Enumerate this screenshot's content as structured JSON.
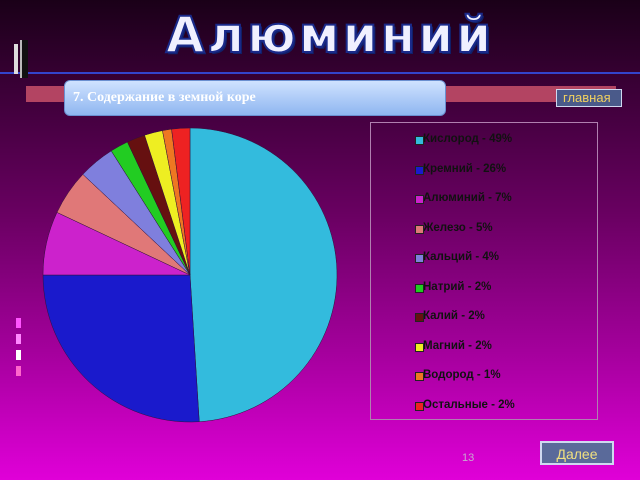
{
  "slide": {
    "title": "Алюминий",
    "subtitle": "7. Содержание в земной коре",
    "home_label": "главная",
    "next_label": "Далее",
    "page_number": "13"
  },
  "chart_data": {
    "type": "pie",
    "title": "",
    "legend_position": "right",
    "slices": [
      {
        "label": "Кислород - 49%",
        "value": 49,
        "color": "#33bbdd"
      },
      {
        "label": "Кремний - 26%",
        "value": 26,
        "color": "#1a1acc"
      },
      {
        "label": "Алюминий - 7%",
        "value": 7,
        "color": "#cc22cc"
      },
      {
        "label": "Железо - 5%",
        "value": 5,
        "color": "#e07878"
      },
      {
        "label": "Кальций - 4%",
        "value": 4,
        "color": "#7f7fdd"
      },
      {
        "label": "Натрий - 2%",
        "value": 2,
        "color": "#22cc22"
      },
      {
        "label": "Калий - 2%",
        "value": 2,
        "color": "#661010"
      },
      {
        "label": "Магний - 2%",
        "value": 2,
        "color": "#eeee22"
      },
      {
        "label": "Водород - 1%",
        "value": 1,
        "color": "#ee7722"
      },
      {
        "label": "Остальные - 2%",
        "value": 2,
        "color": "#ee2222"
      }
    ]
  }
}
